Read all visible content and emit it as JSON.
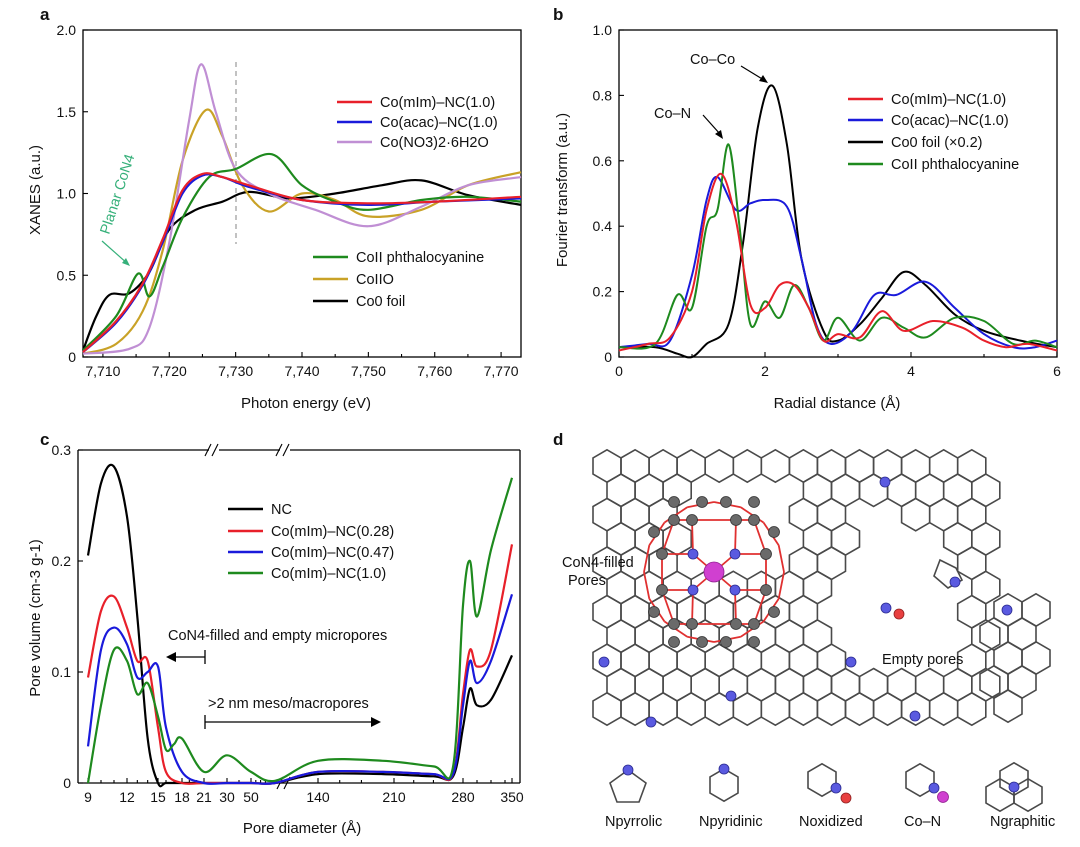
{
  "panels": {
    "a": {
      "label": "a",
      "xlabel": "Photon energy (eV)",
      "ylabel": "XANES (a.u.)",
      "xticks": [
        "7,710",
        "7,720",
        "7,730",
        "7,740",
        "7,750",
        "7,760",
        "7,770"
      ],
      "yticks": [
        "0",
        "0.5",
        "1.0",
        "1.5",
        "2.0"
      ],
      "legend_top": [
        "Co(mIm)–NC(1.0)",
        "Co(acac)–NC(1.0)",
        "Co(NO3)2·6H2O"
      ],
      "legend_bottom": [
        "CoII phthalocyanine",
        "CoIIO",
        "Co0 foil"
      ],
      "annotation": "Planar CoN4"
    },
    "b": {
      "label": "b",
      "xlabel": "Radial distance (Å)",
      "ylabel": "Fourier transform (a.u.)",
      "xticks": [
        "0",
        "2",
        "4",
        "6"
      ],
      "yticks": [
        "0",
        "0.2",
        "0.4",
        "0.6",
        "0.8",
        "1.0"
      ],
      "legend": [
        "Co(mIm)–NC(1.0)",
        "Co(acac)–NC(1.0)",
        "Co0 foil (×0.2)",
        "CoII phthalocyanine"
      ],
      "ann_coco": "Co–Co",
      "ann_con": "Co–N"
    },
    "c": {
      "label": "c",
      "xlabel": "Pore diameter (Å)",
      "ylabel": "Pore volume (cm-3 g-1)",
      "xticks": [
        "9",
        "12",
        "15",
        "18",
        "21",
        "30",
        "50",
        "140",
        "210",
        "280",
        "350"
      ],
      "yticks": [
        "0",
        "0.1",
        "0.2",
        "0.3"
      ],
      "legend": [
        "NC",
        "Co(mIm)–NC(0.28)",
        "Co(mIm)–NC(0.47)",
        "Co(mIm)–NC(1.0)"
      ],
      "ann_micro": "CoN4-filled and empty micropores",
      "ann_meso": ">2 nm meso/macropores"
    },
    "d": {
      "label": "d",
      "ann_filled_1": "CoN4-filled",
      "ann_filled_2": "Pores",
      "ann_empty": "Empty pores",
      "key_labels": [
        "Npyrrolic",
        "Npyridinic",
        "Noxidized",
        "Co–N",
        "Ngraphitic"
      ]
    }
  },
  "colors": {
    "red": "#e8202a",
    "blue": "#1a1adb",
    "purple": "#c08fd4",
    "green": "#1e8a1e",
    "gold": "#c9a227",
    "black": "#000000",
    "annot_green": "#36b07a",
    "n_atom": "#5a5ae0",
    "o_atom": "#e84040",
    "co_atom": "#d040d0"
  },
  "chart_data": [
    {
      "panel": "a",
      "type": "line",
      "xlabel": "Photon energy (eV)",
      "ylabel": "XANES (a.u.)",
      "xlim": [
        7707,
        7773
      ],
      "ylim": [
        0,
        2.0
      ],
      "series": [
        {
          "name": "Co(mIm)–NC(1.0)",
          "x": [
            7707,
            7712,
            7716,
            7719,
            7722,
            7725,
            7728,
            7732,
            7740,
            7750,
            7760,
            7773
          ],
          "values": [
            0.03,
            0.22,
            0.45,
            0.72,
            1.02,
            1.12,
            1.1,
            1.05,
            0.96,
            0.94,
            0.95,
            0.98
          ]
        },
        {
          "name": "Co(acac)–NC(1.0)",
          "x": [
            7707,
            7712,
            7716,
            7719,
            7722,
            7725,
            7728,
            7732,
            7740,
            7750,
            7760,
            7773
          ],
          "values": [
            0.03,
            0.21,
            0.44,
            0.7,
            1.0,
            1.11,
            1.1,
            1.04,
            0.96,
            0.93,
            0.95,
            0.97
          ]
        },
        {
          "name": "Co(NO3)2·6H2O",
          "x": [
            7707,
            7714,
            7717,
            7720,
            7723,
            7724.8,
            7727,
            7730,
            7735,
            7742,
            7750,
            7758,
            7765,
            7773
          ],
          "values": [
            0.02,
            0.05,
            0.18,
            0.7,
            1.45,
            1.79,
            1.5,
            1.15,
            1.0,
            0.9,
            0.8,
            0.92,
            1.05,
            1.1
          ]
        },
        {
          "name": "CoII phthalocyanine",
          "x": [
            7707,
            7712,
            7715.3,
            7717,
            7719,
            7722,
            7726,
            7730,
            7735.5,
            7740,
            7745,
            7750,
            7758,
            7765,
            7773
          ],
          "values": [
            0.04,
            0.25,
            0.51,
            0.37,
            0.55,
            0.85,
            1.1,
            1.15,
            1.24,
            1.05,
            0.95,
            0.9,
            0.96,
            0.98,
            0.95
          ]
        },
        {
          "name": "CoIIO",
          "x": [
            7707,
            7712,
            7716,
            7719,
            7722,
            7725.5,
            7728,
            7731,
            7735,
            7740,
            7745,
            7750,
            7758,
            7765,
            7773
          ],
          "values": [
            0.02,
            0.08,
            0.28,
            0.65,
            1.2,
            1.51,
            1.35,
            1.05,
            0.89,
            1.0,
            0.96,
            0.86,
            0.9,
            1.05,
            1.13
          ]
        },
        {
          "name": "Co0 foil",
          "x": [
            7707,
            7709,
            7711,
            7714,
            7717,
            7720,
            7724,
            7728,
            7732,
            7738,
            7745,
            7752,
            7758,
            7765,
            7773
          ],
          "values": [
            0.04,
            0.25,
            0.38,
            0.39,
            0.52,
            0.78,
            0.9,
            0.95,
            1.01,
            0.97,
            1.0,
            1.05,
            1.08,
            0.99,
            0.93
          ]
        }
      ]
    },
    {
      "panel": "b",
      "type": "line",
      "xlabel": "Radial distance (Å)",
      "ylabel": "Fourier transform (a.u.)",
      "xlim": [
        0,
        6
      ],
      "ylim": [
        0,
        1.0
      ],
      "series": [
        {
          "name": "Co(mIm)–NC(1.0)",
          "x": [
            0,
            0.4,
            0.7,
            1.0,
            1.2,
            1.4,
            1.6,
            1.8,
            2.0,
            2.2,
            2.4,
            2.6,
            2.8,
            3.0,
            3.3,
            3.6,
            3.9,
            4.3,
            4.7,
            5.0,
            5.3,
            5.6,
            6.0
          ],
          "values": [
            0.02,
            0.04,
            0.06,
            0.2,
            0.45,
            0.56,
            0.42,
            0.16,
            0.15,
            0.22,
            0.22,
            0.15,
            0.05,
            0.07,
            0.06,
            0.14,
            0.08,
            0.11,
            0.09,
            0.05,
            0.03,
            0.04,
            0.02
          ]
        },
        {
          "name": "Co(acac)–NC(1.0)",
          "x": [
            0,
            0.4,
            0.7,
            1.0,
            1.2,
            1.35,
            1.6,
            1.8,
            2.0,
            2.3,
            2.5,
            2.7,
            2.9,
            3.2,
            3.5,
            3.8,
            4.2,
            4.6,
            5.0,
            5.4,
            5.7,
            6.0
          ],
          "values": [
            0.03,
            0.04,
            0.05,
            0.25,
            0.48,
            0.55,
            0.45,
            0.47,
            0.48,
            0.46,
            0.3,
            0.1,
            0.04,
            0.08,
            0.19,
            0.19,
            0.23,
            0.15,
            0.07,
            0.03,
            0.03,
            0.05
          ]
        },
        {
          "name": "Co0 foil (×0.2)",
          "x": [
            0,
            0.5,
            0.8,
            1.0,
            1.2,
            1.5,
            1.7,
            1.9,
            2.1,
            2.3,
            2.5,
            2.8,
            3.0,
            3.3,
            3.6,
            3.9,
            4.2,
            4.6,
            5.0,
            5.5,
            6.0
          ],
          "values": [
            0.03,
            0.03,
            0.01,
            0.0,
            0.04,
            0.1,
            0.35,
            0.7,
            0.83,
            0.65,
            0.3,
            0.08,
            0.05,
            0.1,
            0.18,
            0.26,
            0.22,
            0.13,
            0.08,
            0.05,
            0.03
          ]
        },
        {
          "name": "CoII phthalocyanine",
          "x": [
            0,
            0.5,
            0.8,
            1.0,
            1.2,
            1.35,
            1.5,
            1.65,
            1.8,
            2.0,
            2.2,
            2.4,
            2.6,
            2.8,
            3.0,
            3.3,
            3.6,
            3.9,
            4.2,
            4.6,
            5.0,
            5.4,
            5.7,
            6.0
          ],
          "values": [
            0.03,
            0.04,
            0.19,
            0.15,
            0.4,
            0.45,
            0.65,
            0.4,
            0.1,
            0.17,
            0.12,
            0.22,
            0.15,
            0.05,
            0.12,
            0.05,
            0.12,
            0.09,
            0.06,
            0.12,
            0.11,
            0.04,
            0.05,
            0.03
          ]
        }
      ]
    },
    {
      "panel": "c",
      "type": "line",
      "xlabel": "Pore diameter (Å)",
      "ylabel": "Pore volume (cm-3 g-1)",
      "ylim": [
        0,
        0.3
      ],
      "series": [
        {
          "name": "NC",
          "x": [
            9,
            10,
            11,
            12,
            13,
            14,
            15,
            16,
            18,
            21,
            30,
            50,
            100,
            140,
            200,
            250,
            270,
            280,
            290,
            300,
            320,
            350
          ],
          "values": [
            0.205,
            0.27,
            0.285,
            0.24,
            0.15,
            0.04,
            0.0,
            0.0,
            0.0,
            0.0,
            0.0,
            0.0,
            0.0,
            0.008,
            0.008,
            0.006,
            0.006,
            0.05,
            0.085,
            0.07,
            0.075,
            0.115
          ]
        },
        {
          "name": "Co(mIm)–NC(0.28)",
          "x": [
            9,
            10,
            11,
            12,
            13,
            14,
            15,
            16,
            18,
            21,
            30,
            50,
            100,
            140,
            200,
            250,
            270,
            280,
            290,
            300,
            320,
            350
          ],
          "values": [
            0.095,
            0.155,
            0.168,
            0.14,
            0.11,
            0.11,
            0.05,
            0.01,
            0.0,
            0.0,
            0.0,
            0.0,
            0.0,
            0.01,
            0.01,
            0.008,
            0.008,
            0.08,
            0.12,
            0.105,
            0.12,
            0.215
          ]
        },
        {
          "name": "Co(mIm)–NC(0.47)",
          "x": [
            9,
            10,
            11,
            12,
            13,
            14,
            15,
            16,
            18,
            21,
            30,
            50,
            100,
            140,
            200,
            250,
            270,
            280,
            290,
            300,
            320,
            350
          ],
          "values": [
            0.033,
            0.12,
            0.14,
            0.125,
            0.095,
            0.1,
            0.105,
            0.05,
            0.01,
            0.0,
            0.0,
            0.0,
            0.0,
            0.01,
            0.01,
            0.008,
            0.008,
            0.07,
            0.11,
            0.09,
            0.11,
            0.17
          ]
        },
        {
          "name": "Co(mIm)–NC(1.0)",
          "x": [
            9,
            10,
            11,
            12,
            13,
            14,
            15,
            16,
            17,
            18,
            21,
            30,
            50,
            100,
            140,
            200,
            250,
            270,
            280,
            290,
            300,
            320,
            350
          ],
          "values": [
            0.0,
            0.07,
            0.12,
            0.11,
            0.08,
            0.09,
            0.06,
            0.03,
            0.035,
            0.04,
            0.01,
            0.025,
            0.01,
            0.002,
            0.02,
            0.02,
            0.015,
            0.015,
            0.16,
            0.2,
            0.15,
            0.21,
            0.275
          ]
        }
      ]
    }
  ]
}
